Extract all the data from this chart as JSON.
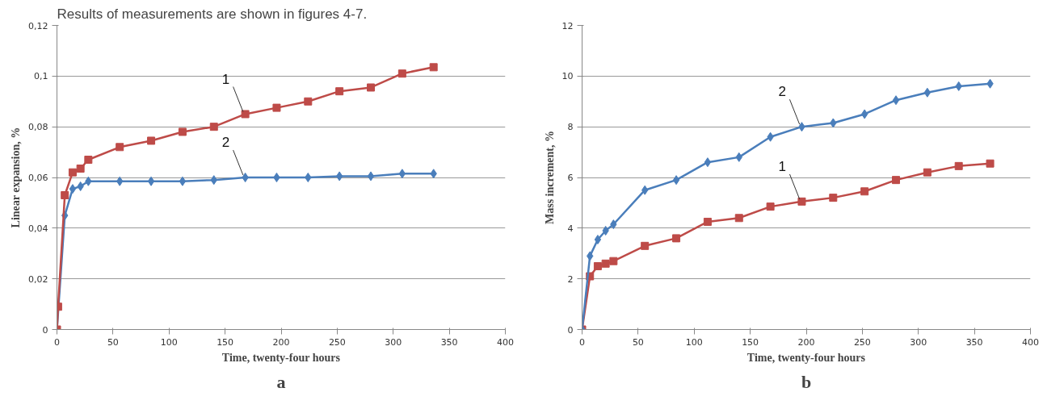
{
  "chart_data": [
    {
      "type": "line",
      "title": "a",
      "xlabel": "Time, twenty-four hours",
      "ylabel": "Linear expansion, %",
      "annotations": [
        "Results of measurements are shown in figures 4-7."
      ],
      "xlim": [
        0,
        400
      ],
      "xticks": [
        0,
        50,
        100,
        150,
        200,
        250,
        300,
        350,
        400
      ],
      "ylim": [
        0,
        0.12
      ],
      "yticks": [
        0,
        {
          "value": 0.02,
          "label": "0,02"
        },
        {
          "value": 0.04,
          "label": "0,04"
        },
        {
          "value": 0.06,
          "label": "0,06"
        },
        {
          "value": 0.08,
          "label": "0,08"
        },
        {
          "value": 0.1,
          "label": "0,1"
        },
        {
          "value": 0.12,
          "label": "0,12"
        }
      ],
      "grid": "y",
      "line_style": "solid",
      "series": [
        {
          "name": "2",
          "color": "#4a7ebb",
          "marker": "diamond",
          "x": [
            0,
            7,
            14,
            21,
            28,
            56,
            84,
            112,
            140,
            168,
            196,
            224,
            252,
            280,
            308,
            336
          ],
          "values": [
            0,
            0.045,
            0.0555,
            0.0565,
            0.0585,
            0.0585,
            0.0585,
            0.0585,
            0.059,
            0.06,
            0.06,
            0.06,
            0.0605,
            0.0605,
            0.0615,
            0.0615
          ]
        },
        {
          "name": "1",
          "color": "#be4b48",
          "marker": "square",
          "x": [
            0,
            1,
            7,
            14,
            21,
            28,
            56,
            84,
            112,
            140,
            168,
            196,
            224,
            252,
            280,
            308,
            336
          ],
          "values": [
            0,
            0.009,
            0.053,
            0.062,
            0.0635,
            0.067,
            0.072,
            0.0745,
            0.078,
            0.08,
            0.085,
            0.0875,
            0.09,
            0.094,
            0.0955,
            0.101,
            0.1035
          ]
        }
      ]
    },
    {
      "type": "line",
      "title": "b",
      "xlabel": "Time, twenty-four hours",
      "ylabel": "Mass increment, %",
      "xlim": [
        0,
        400
      ],
      "xticks": [
        0,
        50,
        100,
        150,
        200,
        250,
        300,
        350,
        400
      ],
      "ylim": [
        0,
        12
      ],
      "yticks": [
        0,
        2,
        4,
        6,
        8,
        10,
        12
      ],
      "grid": "y",
      "line_style": "solid",
      "series": [
        {
          "name": "1",
          "color": "#be4b48",
          "marker": "square",
          "x": [
            0,
            7,
            14,
            21,
            28,
            56,
            84,
            112,
            140,
            168,
            196,
            224,
            252,
            280,
            308,
            336,
            364
          ],
          "values": [
            0,
            2.1,
            2.5,
            2.6,
            2.7,
            3.3,
            3.6,
            4.25,
            4.4,
            4.85,
            5.05,
            5.2,
            5.45,
            5.9,
            6.2,
            6.45,
            6.55
          ]
        },
        {
          "name": "2",
          "color": "#4a7ebb",
          "marker": "diamond",
          "x": [
            0,
            7,
            14,
            21,
            28,
            56,
            84,
            112,
            140,
            168,
            196,
            224,
            252,
            280,
            308,
            336,
            364
          ],
          "values": [
            0,
            2.9,
            3.55,
            3.9,
            4.15,
            5.5,
            5.9,
            6.6,
            6.8,
            7.6,
            8.0,
            8.15,
            8.5,
            9.05,
            9.35,
            9.6,
            9.7
          ]
        }
      ]
    }
  ]
}
